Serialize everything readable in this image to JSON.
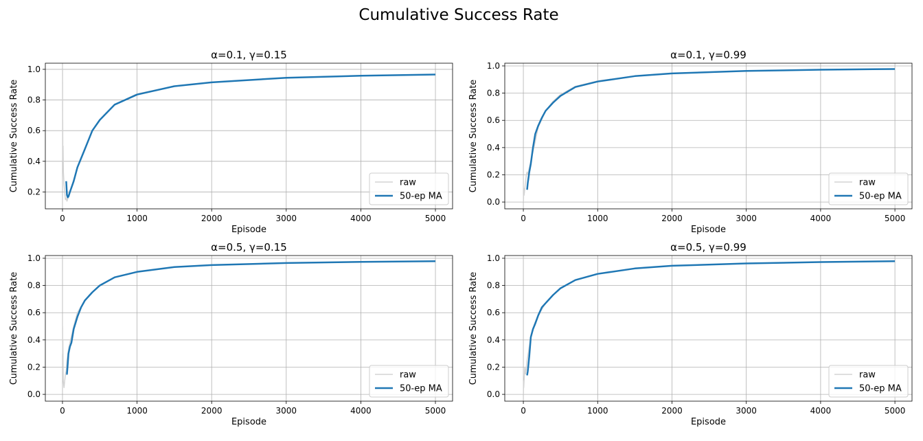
{
  "suptitle": "Cumulative Success Rate",
  "colors": {
    "raw": "#d3d3d3",
    "ma": "#1f77b4"
  },
  "chart_data": [
    {
      "type": "line",
      "title": "α=0.1, γ=0.15",
      "xlabel": "Episode",
      "ylabel": "Cumulative Success Rate",
      "xlim": [
        -230,
        5230
      ],
      "ylim": [
        0.09,
        1.04
      ],
      "xticks": [
        0,
        1000,
        2000,
        3000,
        4000,
        5000
      ],
      "yticks": [
        0.2,
        0.4,
        0.6,
        0.8,
        1.0
      ],
      "ytick_labels": [
        "0.2",
        "0.4",
        "0.6",
        "0.8",
        "1.0"
      ],
      "grid": true,
      "legend": "lower right",
      "series": [
        {
          "name": "raw",
          "x": [
            1,
            2,
            3,
            5,
            8,
            12,
            20,
            30,
            40,
            50,
            60,
            80,
            100,
            150,
            200,
            300,
            400,
            500,
            700,
            1000,
            1500,
            2000,
            3000,
            4000,
            5000
          ],
          "y": [
            1.0,
            0.5,
            0.67,
            0.4,
            0.5,
            0.33,
            0.25,
            0.2,
            0.15,
            0.16,
            0.14,
            0.17,
            0.2,
            0.28,
            0.36,
            0.48,
            0.6,
            0.67,
            0.77,
            0.84,
            0.89,
            0.915,
            0.945,
            0.958,
            0.966
          ]
        },
        {
          "name": "50-ep MA",
          "x": [
            50,
            60,
            70,
            80,
            100,
            150,
            200,
            300,
            400,
            500,
            700,
            1000,
            1500,
            2000,
            3000,
            4000,
            5000
          ],
          "y": [
            0.27,
            0.18,
            0.165,
            0.17,
            0.2,
            0.27,
            0.36,
            0.48,
            0.6,
            0.67,
            0.77,
            0.835,
            0.89,
            0.915,
            0.945,
            0.958,
            0.966
          ]
        }
      ]
    },
    {
      "type": "line",
      "title": "α=0.1, γ=0.99",
      "xlabel": "Episode",
      "ylabel": "Cumulative Success Rate",
      "xlim": [
        -250,
        5230
      ],
      "ylim": [
        -0.05,
        1.02
      ],
      "xticks": [
        0,
        1000,
        2000,
        3000,
        4000,
        5000
      ],
      "yticks": [
        0.0,
        0.2,
        0.4,
        0.6,
        0.8,
        1.0
      ],
      "ytick_labels": [
        "0.0",
        "0.2",
        "0.4",
        "0.6",
        "0.8",
        "1.0"
      ],
      "grid": true,
      "legend": "lower right",
      "series": [
        {
          "name": "raw",
          "x": [
            1,
            5,
            10,
            20,
            30,
            40,
            50,
            60,
            80,
            100,
            150,
            200,
            300,
            400,
            500,
            700,
            1000,
            1500,
            2000,
            3000,
            4000,
            5000
          ],
          "y": [
            0.0,
            0.1,
            0.05,
            0.1,
            0.15,
            0.2,
            0.22,
            0.2,
            0.25,
            0.3,
            0.42,
            0.55,
            0.67,
            0.74,
            0.79,
            0.85,
            0.89,
            0.925,
            0.945,
            0.963,
            0.972,
            0.977
          ]
        },
        {
          "name": "50-ep MA",
          "x": [
            50,
            60,
            80,
            100,
            130,
            160,
            200,
            250,
            300,
            400,
            500,
            700,
            1000,
            1500,
            2000,
            3000,
            4000,
            5000
          ],
          "y": [
            0.09,
            0.14,
            0.22,
            0.28,
            0.4,
            0.5,
            0.56,
            0.62,
            0.67,
            0.73,
            0.78,
            0.845,
            0.885,
            0.925,
            0.945,
            0.963,
            0.972,
            0.977
          ]
        }
      ]
    },
    {
      "type": "line",
      "title": "α=0.5, γ=0.15",
      "xlabel": "Episode",
      "ylabel": "Cumulative Success Rate",
      "xlim": [
        -230,
        5230
      ],
      "ylim": [
        -0.05,
        1.02
      ],
      "xticks": [
        0,
        1000,
        2000,
        3000,
        4000,
        5000
      ],
      "yticks": [
        0.0,
        0.2,
        0.4,
        0.6,
        0.8,
        1.0
      ],
      "ytick_labels": [
        "0.0",
        "0.2",
        "0.4",
        "0.6",
        "0.8",
        "1.0"
      ],
      "grid": true,
      "legend": "lower right",
      "series": [
        {
          "name": "raw",
          "x": [
            1,
            3,
            5,
            10,
            20,
            30,
            40,
            50,
            60,
            80,
            100,
            150,
            200,
            300,
            400,
            500,
            700,
            1000,
            1500,
            2000,
            3000,
            4000,
            5000
          ],
          "y": [
            0.5,
            0.3,
            0.4,
            0.1,
            0.05,
            0.1,
            0.15,
            0.17,
            0.25,
            0.33,
            0.38,
            0.5,
            0.6,
            0.69,
            0.75,
            0.8,
            0.86,
            0.9,
            0.935,
            0.95,
            0.965,
            0.973,
            0.978
          ]
        },
        {
          "name": "50-ep MA",
          "x": [
            50,
            60,
            70,
            80,
            100,
            120,
            150,
            200,
            250,
            300,
            400,
            500,
            700,
            1000,
            1500,
            2000,
            3000,
            4000,
            5000
          ],
          "y": [
            0.15,
            0.15,
            0.22,
            0.3,
            0.35,
            0.38,
            0.48,
            0.57,
            0.64,
            0.69,
            0.75,
            0.8,
            0.86,
            0.9,
            0.935,
            0.95,
            0.965,
            0.973,
            0.978
          ]
        }
      ]
    },
    {
      "type": "line",
      "title": "α=0.5, γ=0.99",
      "xlabel": "Episode",
      "ylabel": "Cumulative Success Rate",
      "xlim": [
        -250,
        5230
      ],
      "ylim": [
        -0.05,
        1.02
      ],
      "xticks": [
        0,
        1000,
        2000,
        3000,
        4000,
        5000
      ],
      "yticks": [
        0.0,
        0.2,
        0.4,
        0.6,
        0.8,
        1.0
      ],
      "ytick_labels": [
        "0.0",
        "0.2",
        "0.4",
        "0.6",
        "0.8",
        "1.0"
      ],
      "grid": true,
      "legend": "lower right",
      "series": [
        {
          "name": "raw",
          "x": [
            1,
            3,
            5,
            10,
            20,
            30,
            40,
            50,
            60,
            80,
            100,
            150,
            200,
            300,
            400,
            500,
            700,
            1000,
            1500,
            2000,
            3000,
            4000,
            5000
          ],
          "y": [
            0.0,
            0.1,
            0.05,
            0.1,
            0.2,
            0.15,
            0.2,
            0.25,
            0.28,
            0.35,
            0.42,
            0.52,
            0.58,
            0.67,
            0.73,
            0.78,
            0.84,
            0.885,
            0.925,
            0.945,
            0.962,
            0.972,
            0.978
          ]
        },
        {
          "name": "50-ep MA",
          "x": [
            50,
            60,
            80,
            100,
            130,
            160,
            200,
            250,
            300,
            400,
            500,
            700,
            1000,
            1500,
            2000,
            3000,
            4000,
            5000
          ],
          "y": [
            0.14,
            0.17,
            0.28,
            0.42,
            0.48,
            0.52,
            0.58,
            0.64,
            0.67,
            0.73,
            0.78,
            0.84,
            0.885,
            0.925,
            0.945,
            0.962,
            0.972,
            0.978
          ]
        }
      ]
    }
  ]
}
